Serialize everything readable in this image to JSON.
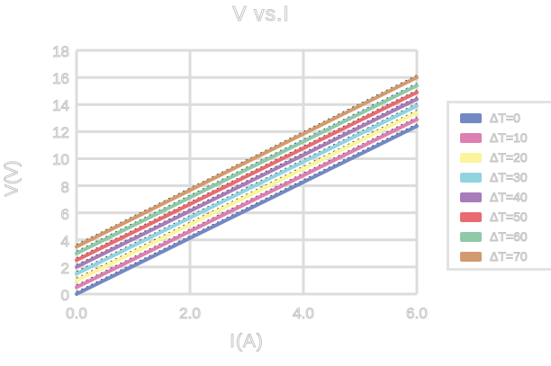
{
  "chart_data": {
    "type": "line",
    "title": "V vs.I",
    "xlabel": "I(A)",
    "ylabel": "V(V)",
    "x": [
      0.0,
      6.0
    ],
    "xlim": [
      0.0,
      6.0
    ],
    "ylim": [
      0,
      18
    ],
    "xticks": [
      "0.0",
      "2.0",
      "4.0",
      "6.0"
    ],
    "yticks": [
      "18",
      "16",
      "14",
      "12",
      "10",
      "8",
      "6",
      "4",
      "2",
      "0"
    ],
    "grid": true,
    "legend_position": "right",
    "series": [
      {
        "name": "ΔT=0",
        "color": "#7289c4",
        "values": [
          0.0,
          12.4
        ]
      },
      {
        "name": "ΔT=10",
        "color": "#dd7fb1",
        "values": [
          0.5,
          12.9
        ]
      },
      {
        "name": "ΔT=20",
        "color": "#fbf49c",
        "values": [
          1.0,
          13.4
        ]
      },
      {
        "name": "ΔT=30",
        "color": "#92d3e0",
        "values": [
          1.5,
          13.9
        ]
      },
      {
        "name": "ΔT=40",
        "color": "#a77cb8",
        "values": [
          2.0,
          14.4
        ]
      },
      {
        "name": "ΔT=50",
        "color": "#e96b70",
        "values": [
          2.5,
          14.9
        ]
      },
      {
        "name": "ΔT=60",
        "color": "#8fc9a8",
        "values": [
          3.0,
          15.4
        ]
      },
      {
        "name": "ΔT=70",
        "color": "#d29a6e",
        "values": [
          3.5,
          16.0
        ]
      }
    ],
    "trendlines": {
      "style": "black-dashed",
      "per_series": true
    }
  },
  "colors": {
    "background": "#ffffff",
    "grid": "#dcdcdc",
    "text_outline": "#c6c6c6",
    "legend_border": "#e3e3e3",
    "trendline": "#333333"
  }
}
